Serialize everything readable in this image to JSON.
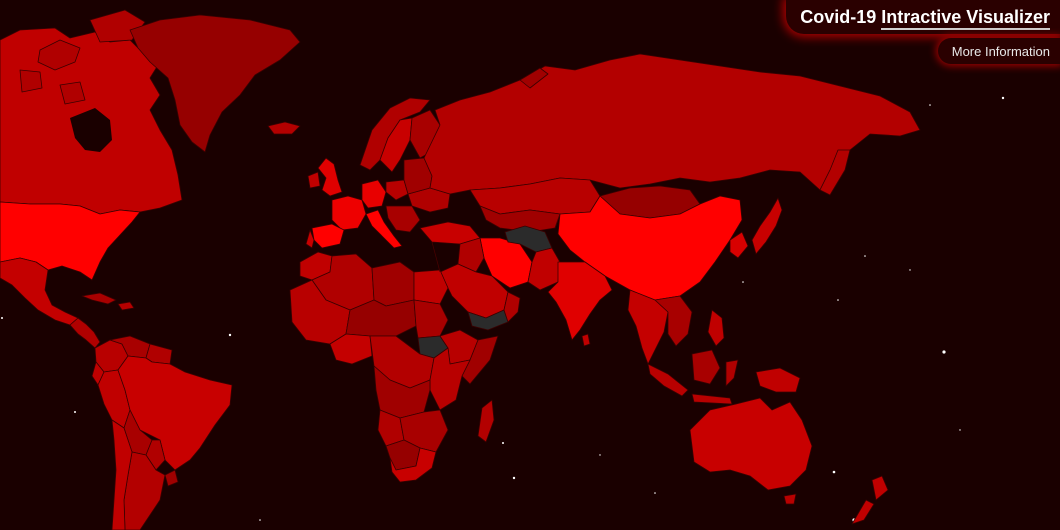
{
  "header": {
    "title_part1": "Covid-19 ",
    "title_part2": "Intractive Visualizer"
  },
  "more_info_button": {
    "label": "More Information"
  },
  "map": {
    "colors": {
      "background": "#1a0000",
      "very_high": "#ff0000",
      "high": "#e00000",
      "medium_high": "#c80000",
      "medium": "#b30000",
      "low": "#960000",
      "very_low": "#7a0000",
      "no_data": "#2b2b2b"
    },
    "highlighted_regions": [
      "United States",
      "China",
      "Italy",
      "Spain",
      "Iran"
    ],
    "no_data_regions": [
      "Afghanistan",
      "Yemen",
      "South Sudan"
    ]
  }
}
